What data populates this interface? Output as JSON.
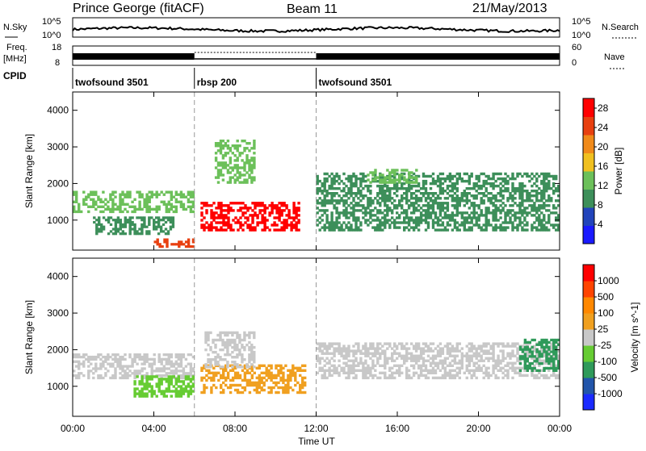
{
  "header": {
    "station": "Prince George (fitACF)",
    "beam": "Beam 11",
    "date": "21/May/2013"
  },
  "noise_panel": {
    "left_label": "N.Sky",
    "right_label": "N.Search",
    "y_ticks": [
      "10^5",
      "10^0"
    ]
  },
  "freq_panel": {
    "left_label_line1": "Freq.",
    "left_label_line2": "[MHz]",
    "right_label": "Nave",
    "left_ticks": [
      "18",
      "8"
    ],
    "right_ticks": [
      "60",
      "0"
    ]
  },
  "cpid": {
    "label": "CPID",
    "segments": [
      {
        "name": "twofsound 3501",
        "start_h": 0,
        "end_h": 6
      },
      {
        "name": "rbsp 200",
        "start_h": 6,
        "end_h": 12
      },
      {
        "name": "twofsound 3501",
        "start_h": 12,
        "end_h": 24
      }
    ]
  },
  "x_axis": {
    "label": "Time UT",
    "ticks": [
      "00:00",
      "04:00",
      "08:00",
      "12:00",
      "16:00",
      "20:00",
      "00:00"
    ]
  },
  "colors": {
    "power": [
      "#1a1aff",
      "#2244bb",
      "#3d8f5a",
      "#6cc05a",
      "#f0c020",
      "#f08a1a",
      "#e84010",
      "#ff0000"
    ],
    "velocity": [
      "#ff0000",
      "#ff4400",
      "#ff8800",
      "#f0a020",
      "#c8c8c8",
      "#66cc33",
      "#2f9a5a",
      "#2255aa",
      "#1a2aff"
    ]
  },
  "chart_data": [
    {
      "type": "heatmap",
      "title": "Power",
      "xlabel": "Time UT",
      "ylabel": "Slant Range [km]",
      "x_range_hours": [
        0,
        24
      ],
      "ylim": [
        180,
        4500
      ],
      "y_ticks": [
        "1000",
        "2000",
        "3000",
        "4000"
      ],
      "colorbar": {
        "label": "Power [dB]",
        "ticks": [
          "4",
          "8",
          "12",
          "16",
          "20",
          "24",
          "28"
        ],
        "range": [
          0,
          30
        ]
      },
      "regions": [
        {
          "t_start": 0.0,
          "t_end": 6.0,
          "range_min": 1200,
          "range_max": 1800,
          "value": 14
        },
        {
          "t_start": 1.0,
          "t_end": 5.0,
          "range_min": 600,
          "range_max": 1100,
          "value": 10
        },
        {
          "t_start": 4.0,
          "t_end": 6.0,
          "range_min": 250,
          "range_max": 500,
          "value": 26
        },
        {
          "t_start": 6.3,
          "t_end": 11.2,
          "range_min": 700,
          "range_max": 1500,
          "value": 27
        },
        {
          "t_start": 7.0,
          "t_end": 9.0,
          "range_min": 2000,
          "range_max": 3200,
          "value": 12
        },
        {
          "t_start": 12.0,
          "t_end": 24.0,
          "range_min": 700,
          "range_max": 2300,
          "value": 8
        },
        {
          "t_start": 14.5,
          "t_end": 17.0,
          "range_min": 2000,
          "range_max": 2400,
          "value": 14
        }
      ]
    },
    {
      "type": "heatmap",
      "title": "Velocity",
      "xlabel": "Time UT",
      "ylabel": "Slant Range [km]",
      "x_range_hours": [
        0,
        24
      ],
      "ylim": [
        180,
        4500
      ],
      "y_ticks": [
        "1000",
        "2000",
        "3000",
        "4000"
      ],
      "colorbar": {
        "label": "Velocity [m s^-1]",
        "ticks": [
          "1000",
          "500",
          "100",
          "25",
          "-25",
          "-100",
          "-500",
          "-1000"
        ],
        "range": [
          -1000,
          1000
        ]
      },
      "regions": [
        {
          "t_start": 0.0,
          "t_end": 6.0,
          "range_min": 1200,
          "range_max": 1900,
          "value": 0
        },
        {
          "t_start": 3.0,
          "t_end": 6.0,
          "range_min": 700,
          "range_max": 1300,
          "value": -300
        },
        {
          "t_start": 6.3,
          "t_end": 11.5,
          "range_min": 800,
          "range_max": 1600,
          "value": 150
        },
        {
          "t_start": 6.5,
          "t_end": 9.0,
          "range_min": 1500,
          "range_max": 2500,
          "value": 0
        },
        {
          "t_start": 12.0,
          "t_end": 24.0,
          "range_min": 1200,
          "range_max": 2200,
          "value": 0
        },
        {
          "t_start": 22.0,
          "t_end": 24.0,
          "range_min": 1400,
          "range_max": 2300,
          "value": -500
        }
      ]
    }
  ]
}
